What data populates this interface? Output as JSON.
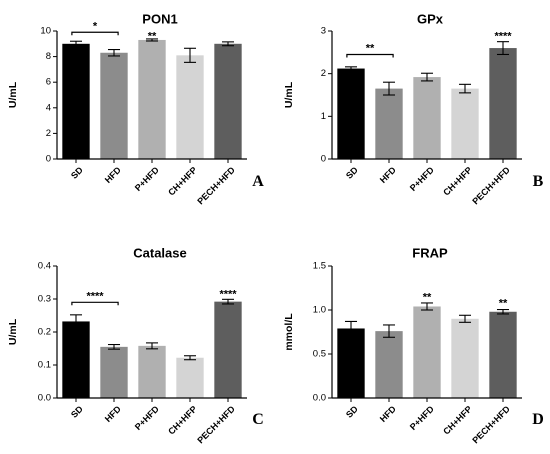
{
  "chart_data": [
    {
      "type": "bar",
      "title": "PON1",
      "ylabel": "U/mL",
      "xlabel": "",
      "letter": "A",
      "categories": [
        "SD",
        "HFD",
        "P+HFD",
        "CH+HFP",
        "PECH+HFD"
      ],
      "values": [
        9.0,
        8.3,
        9.3,
        8.1,
        9.0
      ],
      "errors": [
        0.2,
        0.25,
        0.08,
        0.55,
        0.15
      ],
      "colors": [
        "#000000",
        "#8c8c8c",
        "#b0b0b0",
        "#d4d4d4",
        "#5e5e5e"
      ],
      "ylim": [
        0,
        10
      ],
      "yticks": [
        0,
        2,
        4,
        6,
        8,
        10
      ],
      "ytick_labels": [
        "0",
        "2",
        "4",
        "6",
        "8",
        "10"
      ],
      "annotations": [
        {
          "text": "*",
          "category": "HFD",
          "bracket_from": "SD",
          "y": 9.9
        },
        {
          "text": "**",
          "category": "P+HFD",
          "y": 9.5
        }
      ]
    },
    {
      "type": "bar",
      "title": "GPx",
      "ylabel": "U/mL",
      "xlabel": "",
      "letter": "B",
      "categories": [
        "SD",
        "HFD",
        "P+HFD",
        "CH+HFP",
        "PECH+HFD"
      ],
      "values": [
        2.12,
        1.65,
        1.92,
        1.65,
        2.6
      ],
      "errors": [
        0.04,
        0.15,
        0.09,
        0.1,
        0.15
      ],
      "colors": [
        "#000000",
        "#8c8c8c",
        "#b0b0b0",
        "#d4d4d4",
        "#5e5e5e"
      ],
      "ylim": [
        0,
        3
      ],
      "yticks": [
        0,
        1,
        2,
        3
      ],
      "ytick_labels": [
        "0",
        "1",
        "2",
        "3"
      ],
      "annotations": [
        {
          "text": "**",
          "category": "HFD",
          "bracket_from": "SD",
          "y": 2.45
        },
        {
          "text": "****",
          "category": "PECH+HFD",
          "y": 2.85
        }
      ]
    },
    {
      "type": "bar",
      "title": "Catalase",
      "ylabel": "U/mL",
      "xlabel": "",
      "letter": "C",
      "categories": [
        "SD",
        "HFD",
        "P+HFD",
        "CH+HFP",
        "PECH+HFD"
      ],
      "values": [
        0.232,
        0.155,
        0.158,
        0.122,
        0.292
      ],
      "errors": [
        0.02,
        0.007,
        0.009,
        0.006,
        0.007
      ],
      "colors": [
        "#000000",
        "#8c8c8c",
        "#b0b0b0",
        "#d4d4d4",
        "#5e5e5e"
      ],
      "ylim": [
        0,
        0.4
      ],
      "yticks": [
        0,
        0.1,
        0.2,
        0.3,
        0.4
      ],
      "ytick_labels": [
        "0.0",
        "0.1",
        "0.2",
        "0.3",
        "0.4"
      ],
      "annotations": [
        {
          "text": "****",
          "category": "HFD",
          "bracket_from": "SD",
          "y": 0.29
        },
        {
          "text": "****",
          "category": "PECH+HFD",
          "y": 0.31
        }
      ]
    },
    {
      "type": "bar",
      "title": "FRAP",
      "ylabel": "mmol/L",
      "xlabel": "",
      "letter": "D",
      "categories": [
        "SD",
        "HFD",
        "P+HFD",
        "CH+HFP",
        "PECH+HFD"
      ],
      "values": [
        0.79,
        0.76,
        1.04,
        0.9,
        0.98
      ],
      "errors": [
        0.08,
        0.07,
        0.04,
        0.04,
        0.025
      ],
      "colors": [
        "#000000",
        "#8c8c8c",
        "#b0b0b0",
        "#d4d4d4",
        "#5e5e5e"
      ],
      "ylim": [
        0,
        1.5
      ],
      "yticks": [
        0,
        0.5,
        1.0,
        1.5
      ],
      "ytick_labels": [
        "0.0",
        "0.5",
        "1.0",
        "1.5"
      ],
      "annotations": [
        {
          "text": "**",
          "category": "P+HFD",
          "y": 1.13
        },
        {
          "text": "**",
          "category": "PECH+HFD",
          "y": 1.06
        }
      ]
    }
  ]
}
